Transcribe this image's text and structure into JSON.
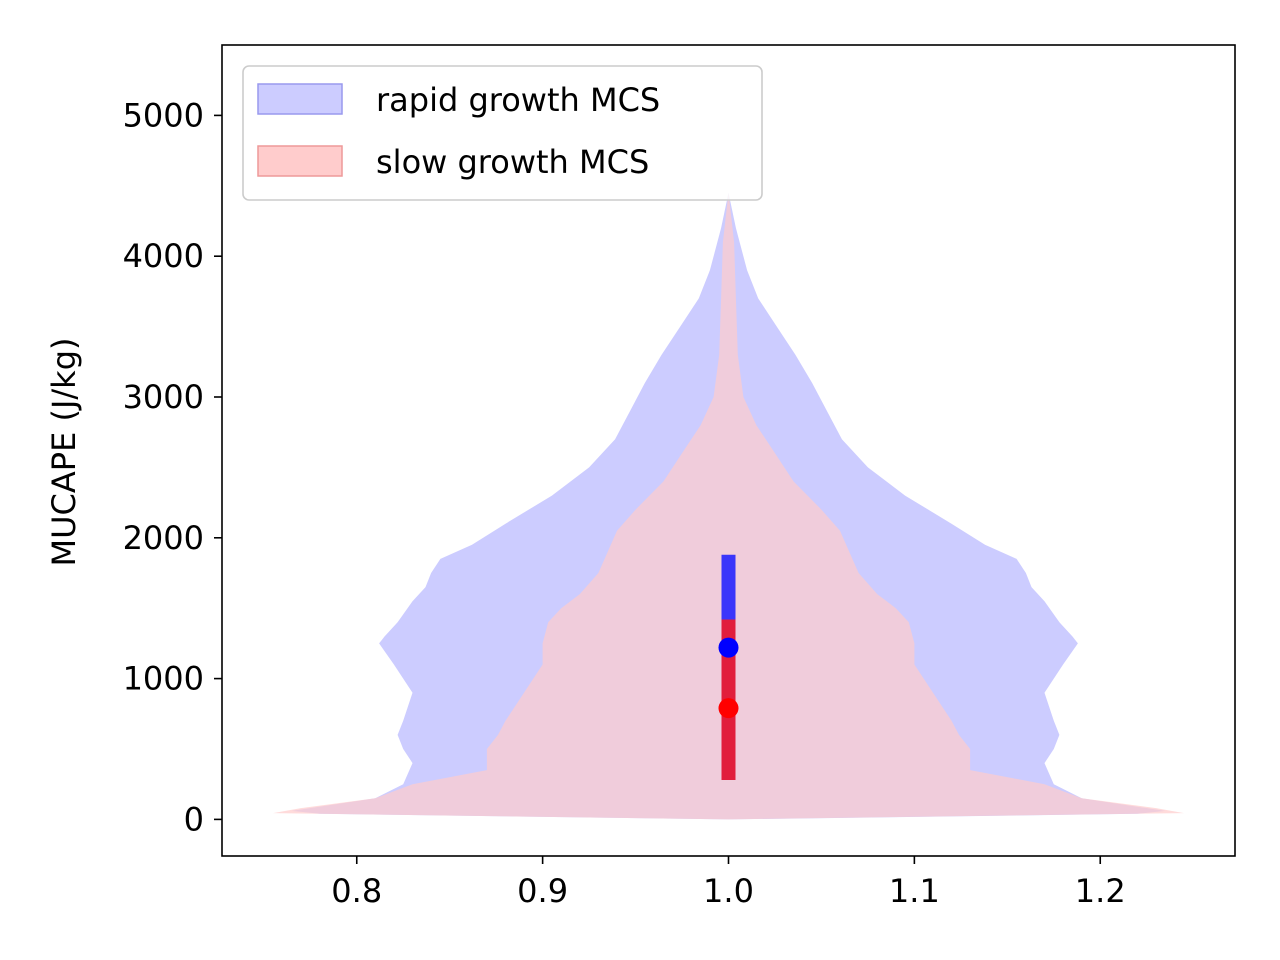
{
  "chart_data": {
    "type": "violin",
    "title": "",
    "xlabel": "",
    "ylabel": "MUCAPE (J/kg)",
    "xlim": [
      0.7275,
      1.2725
    ],
    "ylim": [
      -260,
      5500
    ],
    "x_ticks": [
      "0.8",
      "0.9",
      "1.0",
      "1.1",
      "1.2"
    ],
    "y_ticks": [
      "0",
      "1000",
      "2000",
      "3000",
      "4000",
      "5000"
    ],
    "legend_position": "upper-left",
    "grid": false,
    "series": [
      {
        "name": "rapid growth MCS",
        "fill_color": "#ccccff",
        "center": 1.0,
        "profile": [
          [
            0,
            0.0
          ],
          [
            40,
            0.22
          ],
          [
            60,
            0.235
          ],
          [
            150,
            0.19
          ],
          [
            250,
            0.175
          ],
          [
            400,
            0.17
          ],
          [
            500,
            0.175
          ],
          [
            600,
            0.178
          ],
          [
            700,
            0.175
          ],
          [
            900,
            0.17
          ],
          [
            1100,
            0.18
          ],
          [
            1250,
            0.188
          ],
          [
            1300,
            0.185
          ],
          [
            1400,
            0.178
          ],
          [
            1550,
            0.17
          ],
          [
            1650,
            0.163
          ],
          [
            1750,
            0.16
          ],
          [
            1850,
            0.155
          ],
          [
            1950,
            0.138
          ],
          [
            2100,
            0.12
          ],
          [
            2300,
            0.095
          ],
          [
            2500,
            0.075
          ],
          [
            2700,
            0.061
          ],
          [
            2900,
            0.053
          ],
          [
            3100,
            0.045
          ],
          [
            3300,
            0.036
          ],
          [
            3500,
            0.026
          ],
          [
            3700,
            0.016
          ],
          [
            3900,
            0.01
          ],
          [
            4200,
            0.004
          ],
          [
            4450,
            0.0
          ]
        ],
        "median": 1220,
        "q1": 280,
        "q3": 1880,
        "median_color": "#0000ff",
        "box_color": "#1a1aff"
      },
      {
        "name": "slow growth MCS",
        "fill_color": "#ffcccc",
        "center": 1.0,
        "profile": [
          [
            0,
            0.0
          ],
          [
            45,
            0.245
          ],
          [
            80,
            0.23
          ],
          [
            150,
            0.19
          ],
          [
            250,
            0.17
          ],
          [
            350,
            0.13
          ],
          [
            500,
            0.13
          ],
          [
            600,
            0.124
          ],
          [
            700,
            0.12
          ],
          [
            900,
            0.11
          ],
          [
            1100,
            0.1
          ],
          [
            1250,
            0.1
          ],
          [
            1400,
            0.097
          ],
          [
            1500,
            0.09
          ],
          [
            1600,
            0.08
          ],
          [
            1750,
            0.07
          ],
          [
            1900,
            0.065
          ],
          [
            2050,
            0.06
          ],
          [
            2200,
            0.05
          ],
          [
            2400,
            0.035
          ],
          [
            2600,
            0.025
          ],
          [
            2800,
            0.015
          ],
          [
            3000,
            0.008
          ],
          [
            3300,
            0.005
          ],
          [
            3700,
            0.004
          ],
          [
            4100,
            0.003
          ],
          [
            4450,
            0.0
          ]
        ],
        "median": 790,
        "q1": 280,
        "q3": 1420,
        "median_color": "#ff0000",
        "box_color": "#ff1a1a"
      }
    ]
  }
}
